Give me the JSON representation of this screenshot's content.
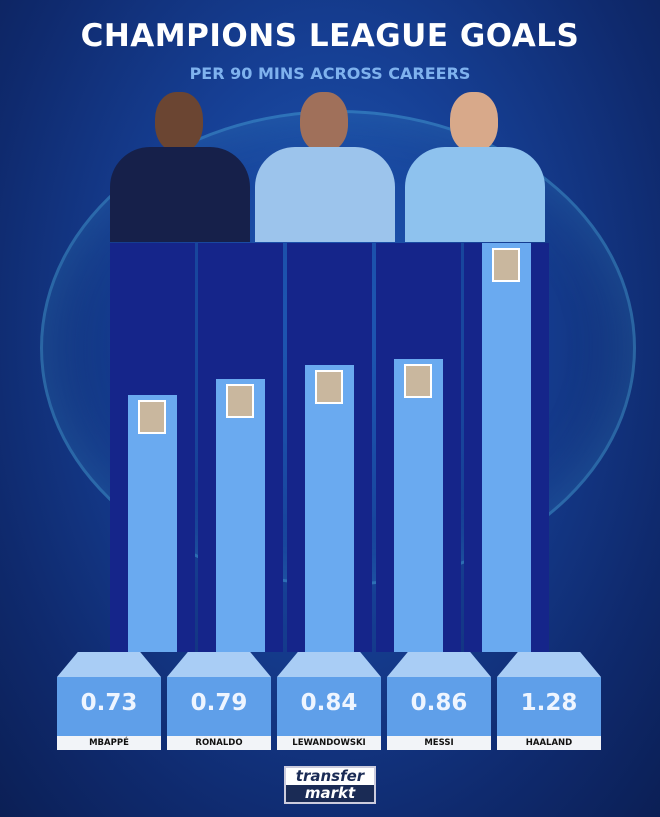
{
  "chart_data": {
    "type": "bar",
    "title": "CHAMPIONS LEAGUE GOALS",
    "subtitle": "PER 90 MINS ACROSS CAREERS",
    "categories": [
      "MBAPPÉ",
      "RONALDO",
      "LEWANDOWSKI",
      "MESSI",
      "HAALAND"
    ],
    "values": [
      0.73,
      0.79,
      0.84,
      0.86,
      1.28
    ],
    "value_labels": [
      "0.73",
      "0.79",
      "0.84",
      "0.86",
      "1.28"
    ],
    "xlabel": "",
    "ylabel": "",
    "colors": {
      "bar": "#6aaaf0",
      "column": "#15258a",
      "background": "#163f94"
    }
  },
  "brand": {
    "line1": "transfer",
    "line2": "markt"
  }
}
